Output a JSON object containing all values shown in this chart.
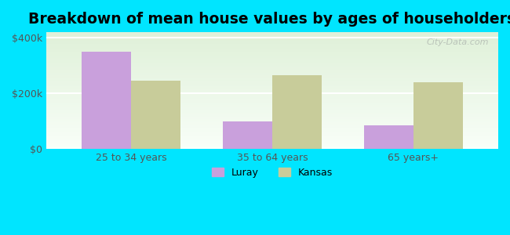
{
  "title": "Breakdown of mean house values by ages of householders",
  "categories": [
    "25 to 34 years",
    "35 to 64 years",
    "65 years+"
  ],
  "luray_values": [
    350000,
    100000,
    85000
  ],
  "kansas_values": [
    245000,
    265000,
    240000
  ],
  "luray_color": "#c9a0dc",
  "kansas_color": "#c8cc9a",
  "background_outer": "#00e5ff",
  "bg_bottom": "#dff0d8",
  "bg_top": "#f8fef8",
  "ylim": [
    0,
    420000
  ],
  "yticks": [
    0,
    200000,
    400000
  ],
  "ytick_labels": [
    "$0",
    "$200k",
    "$400k"
  ],
  "legend_labels": [
    "Luray",
    "Kansas"
  ],
  "bar_width": 0.35,
  "title_fontsize": 13.5,
  "watermark": "City-Data.com"
}
